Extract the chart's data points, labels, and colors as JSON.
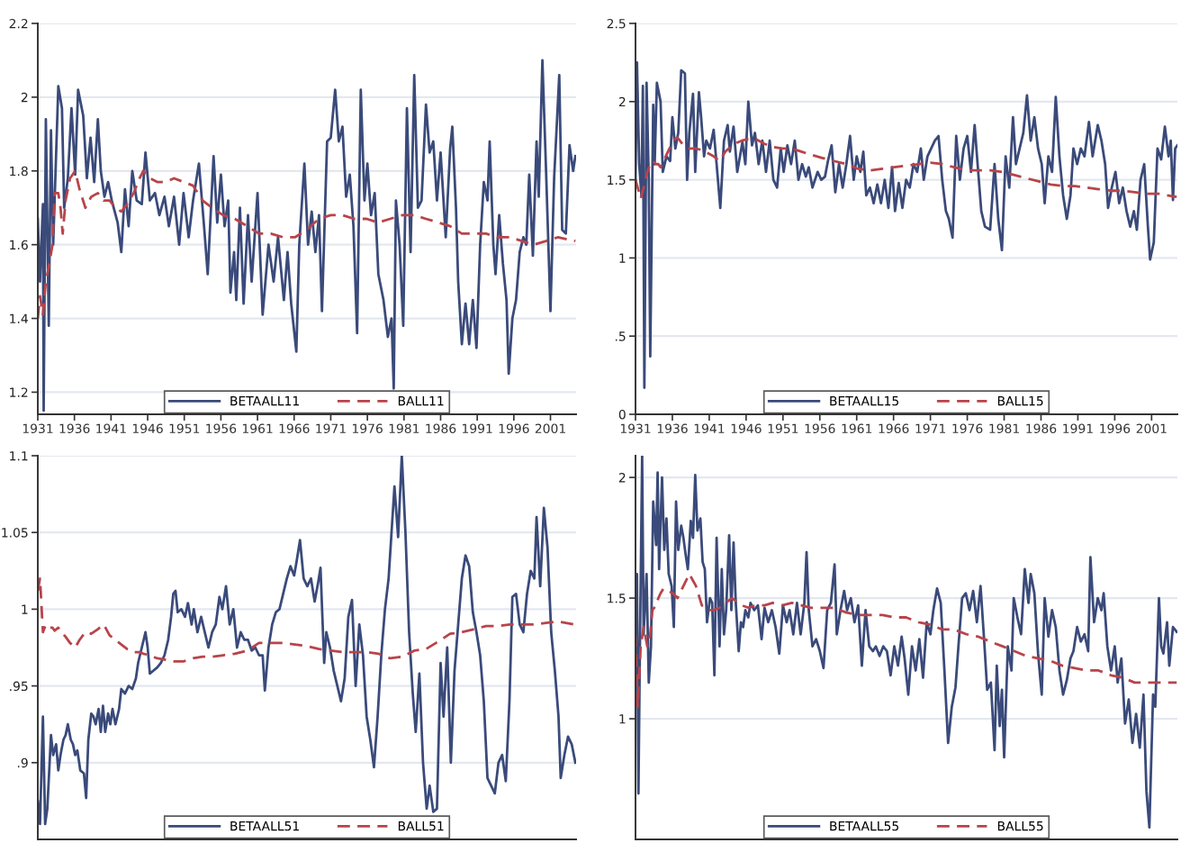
{
  "chart_data": [
    {
      "type": "line",
      "xlim": [
        1931,
        2004.5
      ],
      "xticks": [
        1931,
        1936,
        1941,
        1946,
        1951,
        1956,
        1961,
        1966,
        1971,
        1976,
        1981,
        1986,
        1991,
        1996,
        2001
      ],
      "ylim": [
        1.14,
        2.2
      ],
      "yticks": [
        1.2,
        1.4,
        1.6,
        1.8,
        2,
        2.2
      ],
      "grid": "y",
      "legend": "bottom",
      "series": [
        {
          "name": "BETAALL11",
          "color": "#3a4a7a",
          "line_style": "solid",
          "x": [
            1931.0,
            1931.3,
            1931.7,
            1931.8,
            1932.1,
            1932.5,
            1932.8,
            1933.1,
            1933.8,
            1934.3,
            1934.6,
            1935.1,
            1935.6,
            1936.1,
            1936.5,
            1937.2,
            1937.7,
            1938.2,
            1938.7,
            1939.2,
            1939.6,
            1940.1,
            1940.6,
            1941.1,
            1941.9,
            1942.4,
            1942.9,
            1943.4,
            1943.9,
            1944.5,
            1945.2,
            1945.7,
            1946.3,
            1947.0,
            1947.6,
            1948.3,
            1948.9,
            1949.6,
            1950.3,
            1950.9,
            1951.6,
            1952.2,
            1953.0,
            1953.7,
            1954.2,
            1955.0,
            1955.5,
            1956.0,
            1956.5,
            1957.0,
            1957.3,
            1957.8,
            1958.1,
            1958.6,
            1959.1,
            1959.7,
            1960.2,
            1961.0,
            1961.7,
            1962.5,
            1963.2,
            1963.8,
            1964.6,
            1965.1,
            1965.6,
            1966.3,
            1966.7,
            1967.4,
            1967.9,
            1968.4,
            1968.9,
            1969.4,
            1969.8,
            1970.5,
            1971.0,
            1971.6,
            1972.1,
            1972.6,
            1973.1,
            1973.6,
            1974.1,
            1974.6,
            1975.1,
            1975.6,
            1976.0,
            1976.5,
            1977.0,
            1977.5,
            1978.2,
            1978.8,
            1979.3,
            1979.6,
            1979.9,
            1980.4,
            1980.9,
            1981.4,
            1981.9,
            1982.4,
            1982.9,
            1983.4,
            1984.0,
            1984.5,
            1985.0,
            1985.5,
            1986.0,
            1986.7,
            1987.3,
            1987.6,
            1988.1,
            1988.4,
            1988.9,
            1989.4,
            1989.9,
            1990.4,
            1990.9,
            1991.4,
            1991.9,
            1992.4,
            1992.7,
            1993.2,
            1993.5,
            1994.0,
            1994.5,
            1995.0,
            1995.3,
            1995.8,
            1996.3,
            1996.8,
            1997.3,
            1997.7,
            1998.1,
            1998.6,
            1999.1,
            1999.4,
            1999.9,
            2000.4,
            2001.0,
            2001.5,
            2002.2,
            2002.6,
            2003.1,
            2003.6,
            2004.1,
            2004.4
          ],
          "values": [
            1.67,
            1.5,
            1.71,
            1.15,
            1.94,
            1.38,
            1.91,
            1.6,
            2.03,
            1.97,
            1.7,
            1.78,
            1.97,
            1.79,
            2.02,
            1.95,
            1.78,
            1.89,
            1.77,
            1.94,
            1.8,
            1.73,
            1.77,
            1.72,
            1.66,
            1.58,
            1.75,
            1.65,
            1.8,
            1.72,
            1.71,
            1.85,
            1.72,
            1.74,
            1.68,
            1.73,
            1.65,
            1.73,
            1.6,
            1.74,
            1.62,
            1.72,
            1.82,
            1.65,
            1.52,
            1.84,
            1.66,
            1.79,
            1.65,
            1.72,
            1.47,
            1.58,
            1.45,
            1.7,
            1.44,
            1.68,
            1.5,
            1.74,
            1.41,
            1.6,
            1.5,
            1.62,
            1.45,
            1.58,
            1.44,
            1.31,
            1.6,
            1.82,
            1.6,
            1.69,
            1.58,
            1.68,
            1.42,
            1.88,
            1.89,
            2.02,
            1.88,
            1.92,
            1.73,
            1.79,
            1.65,
            1.36,
            2.02,
            1.72,
            1.82,
            1.68,
            1.74,
            1.52,
            1.45,
            1.35,
            1.4,
            1.21,
            1.72,
            1.6,
            1.38,
            1.97,
            1.58,
            2.06,
            1.7,
            1.72,
            1.98,
            1.85,
            1.88,
            1.72,
            1.85,
            1.62,
            1.86,
            1.92,
            1.7,
            1.5,
            1.33,
            1.44,
            1.33,
            1.45,
            1.32,
            1.6,
            1.77,
            1.72,
            1.88,
            1.6,
            1.52,
            1.68,
            1.55,
            1.45,
            1.25,
            1.4,
            1.45,
            1.58,
            1.62,
            1.6,
            1.79,
            1.57,
            1.88,
            1.73,
            2.1,
            1.8,
            1.42,
            1.78,
            2.06,
            1.64,
            1.63,
            1.87,
            1.8,
            1.84
          ]
        },
        {
          "name": "BALL11",
          "color": "#b8444a",
          "line_style": "dashed",
          "x": [
            1931.0,
            1931.3,
            1931.7,
            1932.1,
            1932.6,
            1933.0,
            1933.3,
            1933.8,
            1934.1,
            1934.4,
            1934.8,
            1935.4,
            1936.1,
            1936.7,
            1937.5,
            1938.3,
            1939.2,
            1940.0,
            1940.8,
            1941.6,
            1942.4,
            1943.2,
            1944.1,
            1944.9,
            1945.4,
            1946.3,
            1947.3,
            1948.5,
            1949.6,
            1950.9,
            1952.2,
            1953.5,
            1954.8,
            1956.3,
            1957.9,
            1959.6,
            1961.2,
            1962.8,
            1964.5,
            1966.1,
            1967.7,
            1969.4,
            1971.0,
            1972.6,
            1974.2,
            1975.9,
            1977.5,
            1979.1,
            1980.8,
            1982.4,
            1984.0,
            1985.7,
            1987.3,
            1988.9,
            1990.6,
            1992.2,
            1993.8,
            1995.5,
            1997.1,
            1998.7,
            2000.4,
            2002.0,
            2004.4
          ],
          "values": [
            1.4,
            1.46,
            1.41,
            1.5,
            1.55,
            1.6,
            1.74,
            1.74,
            1.7,
            1.63,
            1.72,
            1.78,
            1.8,
            1.75,
            1.7,
            1.73,
            1.74,
            1.72,
            1.72,
            1.7,
            1.69,
            1.71,
            1.74,
            1.78,
            1.8,
            1.78,
            1.77,
            1.77,
            1.78,
            1.77,
            1.76,
            1.72,
            1.7,
            1.68,
            1.67,
            1.65,
            1.63,
            1.63,
            1.62,
            1.62,
            1.64,
            1.67,
            1.68,
            1.68,
            1.67,
            1.67,
            1.66,
            1.67,
            1.68,
            1.68,
            1.67,
            1.66,
            1.65,
            1.63,
            1.63,
            1.63,
            1.62,
            1.62,
            1.61,
            1.6,
            1.61,
            1.62,
            1.61
          ]
        }
      ]
    },
    {
      "type": "line",
      "xlim": [
        1931,
        2004.5
      ],
      "xticks": [
        1931,
        1936,
        1941,
        1946,
        1951,
        1956,
        1961,
        1966,
        1971,
        1976,
        1981,
        1986,
        1991,
        1996,
        2001
      ],
      "ylim": [
        0,
        2.5
      ],
      "yticks": [
        0,
        {
          "value": 0.5,
          "label": ".5"
        },
        1,
        1.5,
        2,
        2.5
      ],
      "grid": "y",
      "legend": "bottom",
      "series": [
        {
          "name": "BETAALL15",
          "color": "#3a4a7a",
          "line_style": "solid",
          "x": [
            1931.0,
            1931.2,
            1931.5,
            1931.8,
            1932.0,
            1932.2,
            1932.5,
            1932.8,
            1933.0,
            1933.4,
            1933.6,
            1933.9,
            1934.4,
            1934.7,
            1935.2,
            1935.7,
            1936.0,
            1936.4,
            1936.8,
            1937.2,
            1937.7,
            1938.0,
            1938.3,
            1938.8,
            1939.1,
            1939.6,
            1939.9,
            1940.3,
            1940.6,
            1941.1,
            1941.6,
            1942.0,
            1942.5,
            1943.0,
            1943.5,
            1943.8,
            1944.3,
            1944.8,
            1945.5,
            1945.9,
            1946.3,
            1946.8,
            1947.2,
            1947.7,
            1948.2,
            1948.7,
            1949.2,
            1949.7,
            1950.2,
            1950.7,
            1951.1,
            1951.6,
            1952.1,
            1952.6,
            1953.1,
            1953.6,
            1954.1,
            1954.5,
            1955.0,
            1955.7,
            1956.2,
            1956.7,
            1957.1,
            1957.6,
            1958.1,
            1958.6,
            1959.1,
            1959.6,
            1960.1,
            1960.6,
            1961.0,
            1961.5,
            1961.9,
            1962.3,
            1962.8,
            1963.3,
            1963.8,
            1964.3,
            1964.8,
            1965.3,
            1965.8,
            1966.2,
            1966.7,
            1967.2,
            1967.7,
            1968.2,
            1968.7,
            1969.2,
            1969.7,
            1970.1,
            1970.6,
            1971.1,
            1971.6,
            1972.1,
            1972.6,
            1973.1,
            1973.5,
            1974.0,
            1974.5,
            1975.0,
            1975.5,
            1976.0,
            1976.5,
            1977.0,
            1977.4,
            1977.9,
            1978.4,
            1979.1,
            1979.7,
            1980.2,
            1980.7,
            1981.2,
            1981.7,
            1982.2,
            1982.6,
            1983.1,
            1983.6,
            1984.1,
            1984.6,
            1985.1,
            1985.6,
            1986.1,
            1986.5,
            1987.0,
            1987.5,
            1988.0,
            1988.5,
            1989.0,
            1989.5,
            1990.0,
            1990.4,
            1990.9,
            1991.4,
            1991.9,
            1992.5,
            1993.0,
            1993.7,
            1994.2,
            1994.7,
            1995.1,
            1995.6,
            1996.1,
            1996.6,
            1997.1,
            1997.6,
            1998.1,
            1998.6,
            1999.0,
            1999.5,
            2000.0,
            2000.5,
            2000.8,
            2001.3,
            2001.8,
            2002.3,
            2002.8,
            2003.3,
            2003.6,
            2003.9,
            2004.2,
            2004.5
          ],
          "values": [
            1.5,
            2.25,
            1.6,
            1.4,
            2.1,
            0.17,
            2.12,
            1.5,
            0.37,
            1.98,
            1.6,
            2.12,
            2.0,
            1.55,
            1.65,
            1.62,
            1.9,
            1.7,
            1.8,
            2.2,
            2.18,
            1.5,
            1.8,
            2.05,
            1.55,
            2.06,
            1.9,
            1.65,
            1.75,
            1.7,
            1.82,
            1.6,
            1.32,
            1.75,
            1.85,
            1.68,
            1.84,
            1.55,
            1.74,
            1.6,
            2.0,
            1.72,
            1.8,
            1.6,
            1.75,
            1.55,
            1.75,
            1.5,
            1.45,
            1.7,
            1.55,
            1.72,
            1.6,
            1.75,
            1.5,
            1.6,
            1.52,
            1.58,
            1.45,
            1.55,
            1.5,
            1.52,
            1.62,
            1.72,
            1.42,
            1.6,
            1.45,
            1.6,
            1.78,
            1.5,
            1.65,
            1.55,
            1.68,
            1.4,
            1.45,
            1.35,
            1.47,
            1.35,
            1.5,
            1.32,
            1.58,
            1.3,
            1.48,
            1.32,
            1.5,
            1.45,
            1.6,
            1.55,
            1.7,
            1.5,
            1.65,
            1.7,
            1.75,
            1.78,
            1.5,
            1.3,
            1.25,
            1.13,
            1.78,
            1.5,
            1.7,
            1.78,
            1.55,
            1.85,
            1.6,
            1.3,
            1.2,
            1.18,
            1.6,
            1.25,
            1.05,
            1.65,
            1.45,
            1.9,
            1.6,
            1.7,
            1.8,
            2.04,
            1.75,
            1.9,
            1.7,
            1.6,
            1.35,
            1.65,
            1.55,
            2.03,
            1.65,
            1.4,
            1.25,
            1.4,
            1.7,
            1.6,
            1.7,
            1.65,
            1.87,
            1.65,
            1.85,
            1.75,
            1.6,
            1.32,
            1.45,
            1.55,
            1.35,
            1.45,
            1.3,
            1.2,
            1.3,
            1.18,
            1.5,
            1.6,
            1.2,
            0.99,
            1.1,
            1.7,
            1.63,
            1.84,
            1.65,
            1.75,
            1.37,
            1.7,
            1.72
          ]
        },
        {
          "name": "BALL15",
          "color": "#b8444a",
          "line_style": "dashed",
          "x": [
            1931.0,
            1931.3,
            1931.7,
            1932.1,
            1932.6,
            1933.0,
            1933.3,
            1933.8,
            1934.1,
            1934.4,
            1934.8,
            1935.4,
            1936.1,
            1936.7,
            1937.5,
            1938.3,
            1939.2,
            1940.0,
            1940.8,
            1941.6,
            1942.4,
            1943.2,
            1944.1,
            1944.9,
            1945.4,
            1946.3,
            1947.3,
            1948.5,
            1949.6,
            1950.9,
            1952.2,
            1953.5,
            1954.8,
            1956.3,
            1957.9,
            1959.6,
            1961.2,
            1962.8,
            1964.5,
            1966.1,
            1967.7,
            1969.4,
            1971.0,
            1972.6,
            1974.2,
            1975.9,
            1977.5,
            1979.1,
            1980.8,
            1982.4,
            1984.0,
            1985.7,
            1987.3,
            1988.9,
            1990.6,
            1992.2,
            1993.8,
            1995.5,
            1997.1,
            1998.7,
            2000.4,
            2002.0,
            2004.4
          ],
          "values": [
            1.5,
            1.45,
            1.38,
            1.45,
            1.55,
            1.6,
            1.62,
            1.6,
            1.6,
            1.58,
            1.62,
            1.68,
            1.75,
            1.77,
            1.72,
            1.7,
            1.7,
            1.69,
            1.67,
            1.65,
            1.62,
            1.68,
            1.72,
            1.74,
            1.75,
            1.76,
            1.76,
            1.73,
            1.71,
            1.7,
            1.7,
            1.68,
            1.66,
            1.64,
            1.62,
            1.6,
            1.57,
            1.56,
            1.57,
            1.58,
            1.59,
            1.6,
            1.61,
            1.6,
            1.58,
            1.56,
            1.56,
            1.56,
            1.55,
            1.53,
            1.51,
            1.49,
            1.47,
            1.46,
            1.46,
            1.45,
            1.44,
            1.43,
            1.43,
            1.42,
            1.41,
            1.41,
            1.39
          ]
        }
      ]
    },
    {
      "type": "line",
      "xlim": [
        1931,
        2004.5
      ],
      "ylim": [
        0.85,
        1.1
      ],
      "yticks": [
        {
          "value": 0.9,
          "label": ".9"
        },
        {
          "value": 0.95,
          "label": ".95"
        },
        1,
        1.05,
        1.1
      ],
      "grid": "y",
      "legend": "bottom",
      "tick_labels": "y",
      "series": [
        {
          "name": "BETAALL51",
          "color": "#3a4a7a",
          "line_style": "solid",
          "x": [
            1931.0,
            1931.3,
            1931.7,
            1932.0,
            1932.3,
            1932.8,
            1933.1,
            1933.5,
            1933.8,
            1934.1,
            1934.5,
            1934.8,
            1935.1,
            1935.5,
            1935.8,
            1936.1,
            1936.4,
            1936.8,
            1937.3,
            1937.6,
            1937.9,
            1938.3,
            1938.6,
            1938.9,
            1939.3,
            1939.6,
            1939.9,
            1940.2,
            1940.6,
            1940.9,
            1941.2,
            1941.6,
            1942.1,
            1942.4,
            1942.9,
            1943.4,
            1943.9,
            1944.4,
            1944.7,
            1945.2,
            1945.7,
            1946.0,
            1946.3,
            1946.8,
            1947.3,
            1947.8,
            1948.3,
            1948.8,
            1949.2,
            1949.5,
            1949.8,
            1950.1,
            1950.6,
            1951.1,
            1951.5,
            1952.0,
            1952.3,
            1952.8,
            1953.3,
            1953.8,
            1954.3,
            1954.8,
            1955.3,
            1955.8,
            1956.2,
            1956.7,
            1957.2,
            1957.7,
            1958.2,
            1958.7,
            1959.2,
            1959.7,
            1960.2,
            1960.7,
            1961.2,
            1961.7,
            1962.0,
            1962.5,
            1963.0,
            1963.5,
            1964.0,
            1964.5,
            1965.0,
            1965.5,
            1966.0,
            1966.3,
            1966.8,
            1967.3,
            1967.8,
            1968.3,
            1968.8,
            1969.3,
            1969.6,
            1970.1,
            1970.4,
            1970.9,
            1971.4,
            1971.9,
            1972.4,
            1972.9,
            1973.4,
            1973.9,
            1974.4,
            1974.9,
            1975.4,
            1975.9,
            1976.4,
            1976.9,
            1977.4,
            1977.9,
            1978.4,
            1978.9,
            1979.3,
            1979.7,
            1980.2,
            1980.7,
            1981.2,
            1981.7,
            1982.2,
            1982.6,
            1983.1,
            1983.6,
            1984.1,
            1984.5,
            1985.0,
            1985.5,
            1986.0,
            1986.4,
            1986.9,
            1987.4,
            1987.9,
            1988.4,
            1988.9,
            1989.4,
            1989.9,
            1990.4,
            1990.9,
            1991.4,
            1991.9,
            1992.4,
            1992.9,
            1993.4,
            1993.9,
            1994.4,
            1994.9,
            1995.4,
            1995.8,
            1996.3,
            1996.8,
            1997.3,
            1997.8,
            1998.3,
            1998.8,
            1999.1,
            1999.6,
            2000.1,
            2000.6,
            2001.1,
            2001.6,
            2002.1,
            2002.4,
            2002.9,
            2003.4,
            2003.9,
            2004.4
          ],
          "values": [
            0.875,
            0.86,
            0.93,
            0.86,
            0.87,
            0.918,
            0.905,
            0.912,
            0.895,
            0.905,
            0.915,
            0.918,
            0.925,
            0.915,
            0.912,
            0.905,
            0.908,
            0.895,
            0.893,
            0.877,
            0.915,
            0.932,
            0.93,
            0.925,
            0.935,
            0.92,
            0.937,
            0.92,
            0.932,
            0.925,
            0.935,
            0.925,
            0.935,
            0.948,
            0.945,
            0.95,
            0.948,
            0.955,
            0.965,
            0.975,
            0.985,
            0.975,
            0.958,
            0.96,
            0.962,
            0.965,
            0.97,
            0.98,
            0.995,
            1.01,
            1.012,
            0.998,
            1.0,
            0.995,
            1.004,
            0.99,
            1.0,
            0.985,
            0.995,
            0.985,
            0.975,
            0.985,
            0.99,
            1.008,
            1.0,
            1.015,
            0.99,
            1.0,
            0.975,
            0.985,
            0.98,
            0.98,
            0.973,
            0.975,
            0.97,
            0.97,
            0.947,
            0.975,
            0.99,
            0.998,
            1.0,
            1.01,
            1.02,
            1.028,
            1.022,
            1.03,
            1.045,
            1.02,
            1.015,
            1.02,
            1.005,
            1.018,
            1.027,
            0.965,
            0.985,
            0.975,
            0.96,
            0.95,
            0.94,
            0.955,
            0.995,
            1.006,
            0.95,
            0.99,
            0.97,
            0.93,
            0.915,
            0.897,
            0.93,
            0.97,
            1.0,
            1.02,
            1.05,
            1.08,
            1.047,
            1.1,
            1.05,
            0.985,
            0.945,
            0.92,
            0.958,
            0.9,
            0.87,
            0.885,
            0.868,
            0.87,
            0.965,
            0.93,
            0.975,
            0.9,
            0.96,
            0.99,
            1.02,
            1.035,
            1.028,
            0.998,
            0.985,
            0.97,
            0.94,
            0.89,
            0.885,
            0.88,
            0.9,
            0.905,
            0.888,
            0.94,
            1.008,
            1.01,
            0.99,
            0.985,
            1.01,
            1.025,
            1.02,
            1.06,
            1.015,
            1.066,
            1.04,
            0.985,
            0.96,
            0.93,
            0.89,
            0.905,
            0.917,
            0.912,
            0.9
          ]
        },
        {
          "name": "BALL51",
          "color": "#b8444a",
          "line_style": "dashed",
          "x": [
            1931.0,
            1931.3,
            1931.7,
            1932.1,
            1932.6,
            1933.0,
            1933.3,
            1933.8,
            1934.1,
            1934.4,
            1934.8,
            1935.4,
            1936.1,
            1936.7,
            1937.5,
            1938.3,
            1939.2,
            1940.0,
            1940.8,
            1941.6,
            1942.4,
            1943.2,
            1944.1,
            1944.9,
            1945.4,
            1946.3,
            1947.3,
            1948.5,
            1949.6,
            1950.9,
            1952.2,
            1953.5,
            1954.8,
            1956.3,
            1957.9,
            1959.6,
            1961.2,
            1962.8,
            1964.5,
            1966.1,
            1967.7,
            1969.4,
            1971.0,
            1972.6,
            1974.2,
            1975.9,
            1977.5,
            1979.1,
            1980.8,
            1982.4,
            1984.0,
            1985.7,
            1987.3,
            1988.9,
            1990.6,
            1992.2,
            1993.8,
            1995.5,
            1997.1,
            1998.7,
            2000.4,
            2002.0,
            2004.4
          ],
          "values": [
            1.012,
            1.02,
            0.985,
            0.99,
            0.988,
            0.988,
            0.986,
            0.988,
            0.985,
            0.984,
            0.982,
            0.978,
            0.975,
            0.98,
            0.985,
            0.984,
            0.987,
            0.99,
            0.983,
            0.98,
            0.977,
            0.974,
            0.972,
            0.972,
            0.971,
            0.97,
            0.968,
            0.967,
            0.966,
            0.966,
            0.968,
            0.969,
            0.969,
            0.97,
            0.971,
            0.973,
            0.978,
            0.978,
            0.978,
            0.977,
            0.976,
            0.974,
            0.973,
            0.972,
            0.972,
            0.972,
            0.971,
            0.968,
            0.969,
            0.973,
            0.974,
            0.979,
            0.984,
            0.985,
            0.987,
            0.989,
            0.989,
            0.99,
            0.99,
            0.99,
            0.991,
            0.992,
            0.99
          ]
        }
      ]
    },
    {
      "type": "line",
      "xlim": [
        1931,
        2004.5
      ],
      "ylim": [
        0.5,
        2.09
      ],
      "yticks": [
        1,
        1.5,
        2
      ],
      "grid": "y",
      "legend": "bottom",
      "tick_labels": "y",
      "series": [
        {
          "name": "BETAALL55",
          "color": "#3a4a7a",
          "line_style": "solid",
          "x": [
            1931.0,
            1931.2,
            1931.4,
            1931.6,
            1931.9,
            1932.1,
            1932.5,
            1932.8,
            1933.1,
            1933.4,
            1933.8,
            1934.0,
            1934.2,
            1934.6,
            1934.9,
            1935.2,
            1935.5,
            1935.9,
            1936.2,
            1936.5,
            1936.8,
            1937.2,
            1937.5,
            1937.8,
            1938.1,
            1938.5,
            1938.8,
            1939.1,
            1939.4,
            1939.8,
            1940.1,
            1940.4,
            1940.7,
            1941.1,
            1941.4,
            1941.7,
            1942.0,
            1942.4,
            1942.7,
            1943.0,
            1943.3,
            1943.7,
            1944.0,
            1944.3,
            1944.6,
            1945.0,
            1945.3,
            1945.6,
            1945.9,
            1946.3,
            1946.6,
            1947.1,
            1947.6,
            1948.1,
            1948.5,
            1949.0,
            1949.5,
            1950.0,
            1950.5,
            1951.0,
            1951.5,
            1951.9,
            1952.4,
            1952.9,
            1953.4,
            1953.9,
            1954.2,
            1954.5,
            1955.0,
            1955.5,
            1956.0,
            1956.5,
            1957.0,
            1957.5,
            1958.0,
            1958.3,
            1958.8,
            1959.3,
            1959.7,
            1960.2,
            1960.7,
            1961.2,
            1961.7,
            1962.2,
            1962.7,
            1963.2,
            1963.6,
            1964.1,
            1964.6,
            1965.1,
            1965.6,
            1966.1,
            1966.6,
            1967.1,
            1967.5,
            1968.0,
            1968.5,
            1969.0,
            1969.5,
            1970.0,
            1970.5,
            1971.0,
            1971.4,
            1971.9,
            1972.4,
            1972.9,
            1973.4,
            1973.9,
            1974.4,
            1974.8,
            1975.3,
            1975.8,
            1976.3,
            1976.8,
            1977.3,
            1977.8,
            1978.3,
            1978.7,
            1979.2,
            1979.7,
            1980.0,
            1980.4,
            1980.7,
            1981.0,
            1981.5,
            1982.0,
            1982.3,
            1982.8,
            1983.3,
            1983.8,
            1984.3,
            1984.6,
            1985.1,
            1985.6,
            1986.1,
            1986.5,
            1987.0,
            1987.5,
            1988.0,
            1988.5,
            1989.0,
            1989.5,
            1990.0,
            1990.4,
            1990.9,
            1991.4,
            1991.9,
            1992.4,
            1992.7,
            1993.2,
            1993.7,
            1994.2,
            1994.5,
            1995.0,
            1995.5,
            1996.0,
            1996.4,
            1996.9,
            1997.4,
            1997.9,
            1998.4,
            1998.9,
            1999.4,
            1999.9,
            2000.3,
            2000.7,
            2001.2,
            2001.5,
            2002.0,
            2002.3,
            2002.6,
            2003.1,
            2003.4,
            2003.9,
            2004.4
          ],
          "values": [
            1.35,
            1.6,
            0.69,
            1.3,
            2.09,
            1.35,
            1.6,
            1.15,
            1.3,
            1.9,
            1.72,
            2.02,
            1.62,
            2.0,
            1.7,
            1.83,
            1.6,
            1.55,
            1.38,
            1.9,
            1.7,
            1.8,
            1.75,
            1.68,
            1.62,
            1.82,
            1.75,
            2.01,
            1.78,
            1.83,
            1.65,
            1.62,
            1.4,
            1.5,
            1.48,
            1.18,
            1.75,
            1.3,
            1.62,
            1.35,
            1.45,
            1.76,
            1.45,
            1.73,
            1.48,
            1.28,
            1.4,
            1.38,
            1.45,
            1.42,
            1.48,
            1.45,
            1.47,
            1.33,
            1.46,
            1.4,
            1.45,
            1.38,
            1.27,
            1.47,
            1.4,
            1.45,
            1.35,
            1.48,
            1.35,
            1.48,
            1.69,
            1.45,
            1.3,
            1.33,
            1.28,
            1.21,
            1.45,
            1.48,
            1.64,
            1.35,
            1.45,
            1.53,
            1.45,
            1.5,
            1.4,
            1.47,
            1.22,
            1.45,
            1.3,
            1.28,
            1.3,
            1.26,
            1.3,
            1.28,
            1.18,
            1.3,
            1.22,
            1.34,
            1.25,
            1.1,
            1.3,
            1.2,
            1.33,
            1.17,
            1.4,
            1.35,
            1.45,
            1.54,
            1.48,
            1.2,
            0.9,
            1.05,
            1.13,
            1.3,
            1.5,
            1.52,
            1.45,
            1.53,
            1.4,
            1.55,
            1.32,
            1.12,
            1.15,
            0.87,
            1.22,
            0.97,
            1.12,
            0.84,
            1.3,
            1.2,
            1.5,
            1.42,
            1.35,
            1.62,
            1.48,
            1.6,
            1.52,
            1.27,
            1.1,
            1.5,
            1.34,
            1.45,
            1.38,
            1.2,
            1.1,
            1.16,
            1.25,
            1.28,
            1.38,
            1.32,
            1.35,
            1.28,
            1.67,
            1.4,
            1.5,
            1.45,
            1.52,
            1.3,
            1.2,
            1.3,
            1.15,
            1.25,
            0.98,
            1.08,
            0.9,
            1.02,
            0.88,
            1.1,
            0.7,
            0.55,
            1.1,
            1.05,
            1.5,
            1.3,
            1.27,
            1.4,
            1.22,
            1.38,
            1.36
          ]
        },
        {
          "name": "BALL55",
          "color": "#b8444a",
          "line_style": "dashed",
          "x": [
            1931.0,
            1931.3,
            1931.7,
            1932.1,
            1932.6,
            1933.0,
            1933.3,
            1933.8,
            1934.1,
            1934.4,
            1934.8,
            1935.4,
            1936.1,
            1936.7,
            1937.5,
            1938.3,
            1939.2,
            1940.0,
            1940.8,
            1941.6,
            1942.4,
            1943.2,
            1944.1,
            1944.9,
            1945.4,
            1946.3,
            1947.3,
            1948.5,
            1949.6,
            1950.9,
            1952.2,
            1953.5,
            1954.8,
            1956.3,
            1957.9,
            1959.6,
            1961.2,
            1962.8,
            1964.5,
            1966.1,
            1967.7,
            1969.4,
            1971.0,
            1972.6,
            1974.2,
            1975.9,
            1977.5,
            1979.1,
            1980.8,
            1982.4,
            1984.0,
            1985.7,
            1987.3,
            1988.9,
            1990.6,
            1992.2,
            1993.8,
            1995.5,
            1997.1,
            1998.7,
            2000.4,
            2002.0,
            2004.4
          ],
          "values": [
            1.35,
            1.05,
            1.3,
            1.38,
            1.3,
            1.35,
            1.45,
            1.47,
            1.5,
            1.52,
            1.54,
            1.53,
            1.52,
            1.5,
            1.55,
            1.6,
            1.55,
            1.47,
            1.45,
            1.45,
            1.46,
            1.48,
            1.5,
            1.48,
            1.47,
            1.46,
            1.47,
            1.47,
            1.48,
            1.47,
            1.48,
            1.47,
            1.46,
            1.46,
            1.46,
            1.44,
            1.43,
            1.43,
            1.43,
            1.42,
            1.42,
            1.4,
            1.39,
            1.37,
            1.37,
            1.35,
            1.34,
            1.32,
            1.3,
            1.28,
            1.26,
            1.25,
            1.24,
            1.22,
            1.21,
            1.2,
            1.2,
            1.18,
            1.17,
            1.15,
            1.15,
            1.15,
            1.15
          ]
        }
      ]
    }
  ]
}
